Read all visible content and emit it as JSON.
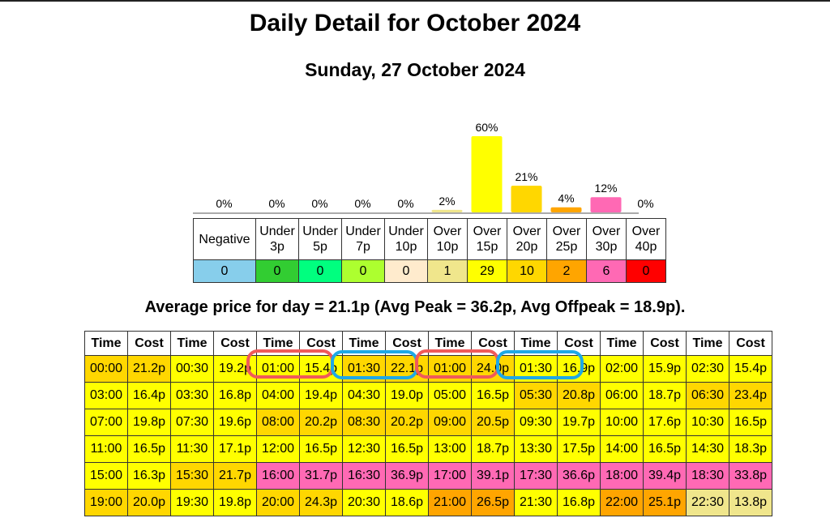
{
  "title": "Daily Detail for October 2024",
  "subtitle": "Sunday, 27 October 2024",
  "average_text": "Average price for day = 21.1p (Avg Peak = 36.2p, Avg Offpeak = 18.9p).",
  "categories": [
    {
      "label": "Negative",
      "count": "0",
      "percent": "0%",
      "color": "#87ceeb"
    },
    {
      "label": "Under 3p",
      "count": "0",
      "percent": "0%",
      "color": "#32cd32"
    },
    {
      "label": "Under 5p",
      "count": "0",
      "percent": "0%",
      "color": "#00ff7f"
    },
    {
      "label": "Under 7p",
      "count": "0",
      "percent": "0%",
      "color": "#adff2f"
    },
    {
      "label": "Under 10p",
      "count": "0",
      "percent": "0%",
      "color": "#ffebcd"
    },
    {
      "label": "Over 10p",
      "count": "1",
      "percent": "2%",
      "color": "#f0e68c"
    },
    {
      "label": "Over 15p",
      "count": "29",
      "percent": "60%",
      "color": "#ffff00"
    },
    {
      "label": "Over 20p",
      "count": "10",
      "percent": "21%",
      "color": "#ffd700"
    },
    {
      "label": "Over 25p",
      "count": "2",
      "percent": "4%",
      "color": "#ffa500"
    },
    {
      "label": "Over 30p",
      "count": "6",
      "percent": "12%",
      "color": "#ff69b4"
    },
    {
      "label": "Over 40p",
      "count": "0",
      "percent": "0%",
      "color": "#ff0000"
    }
  ],
  "chart_data": {
    "type": "bar",
    "categories": [
      "Negative",
      "Under 3p",
      "Under 5p",
      "Under 7p",
      "Under 10p",
      "Over 10p",
      "Over 15p",
      "Over 20p",
      "Over 25p",
      "Over 30p",
      "Over 40p"
    ],
    "values": [
      0,
      0,
      0,
      0,
      0,
      2,
      60,
      21,
      4,
      12,
      0
    ],
    "unit": "%",
    "ylim": [
      0,
      60
    ]
  },
  "table": {
    "header": {
      "time": "Time",
      "cost": "Cost"
    },
    "rows": [
      [
        [
          "00:00",
          "21.2p"
        ],
        [
          "00:30",
          "19.2p"
        ],
        [
          "01:00",
          "15.4p"
        ],
        [
          "01:30",
          "22.1p"
        ],
        [
          "01:00",
          "24.0p"
        ],
        [
          "01:30",
          "16.9p"
        ],
        [
          "02:00",
          "15.9p"
        ],
        [
          "02:30",
          "15.4p"
        ]
      ],
      [
        [
          "03:00",
          "16.4p"
        ],
        [
          "03:30",
          "16.8p"
        ],
        [
          "04:00",
          "19.4p"
        ],
        [
          "04:30",
          "19.0p"
        ],
        [
          "05:00",
          "16.5p"
        ],
        [
          "05:30",
          "20.8p"
        ],
        [
          "06:00",
          "18.7p"
        ],
        [
          "06:30",
          "23.4p"
        ]
      ],
      [
        [
          "07:00",
          "19.8p"
        ],
        [
          "07:30",
          "19.6p"
        ],
        [
          "08:00",
          "20.2p"
        ],
        [
          "08:30",
          "20.2p"
        ],
        [
          "09:00",
          "20.5p"
        ],
        [
          "09:30",
          "19.7p"
        ],
        [
          "10:00",
          "17.6p"
        ],
        [
          "10:30",
          "16.5p"
        ]
      ],
      [
        [
          "11:00",
          "16.5p"
        ],
        [
          "11:30",
          "17.1p"
        ],
        [
          "12:00",
          "16.5p"
        ],
        [
          "12:30",
          "16.5p"
        ],
        [
          "13:00",
          "18.7p"
        ],
        [
          "13:30",
          "17.5p"
        ],
        [
          "14:00",
          "16.5p"
        ],
        [
          "14:30",
          "18.3p"
        ]
      ],
      [
        [
          "15:00",
          "16.3p"
        ],
        [
          "15:30",
          "21.7p"
        ],
        [
          "16:00",
          "31.7p"
        ],
        [
          "16:30",
          "36.9p"
        ],
        [
          "17:00",
          "39.1p"
        ],
        [
          "17:30",
          "36.6p"
        ],
        [
          "18:00",
          "39.4p"
        ],
        [
          "18:30",
          "33.8p"
        ]
      ],
      [
        [
          "19:00",
          "20.0p"
        ],
        [
          "19:30",
          "19.8p"
        ],
        [
          "20:00",
          "24.3p"
        ],
        [
          "20:30",
          "18.6p"
        ],
        [
          "21:00",
          "26.5p"
        ],
        [
          "21:30",
          "16.8p"
        ],
        [
          "22:00",
          "25.1p"
        ],
        [
          "22:30",
          "13.8p"
        ]
      ]
    ]
  },
  "annotations": {
    "red": "#f05a5a",
    "blue": "#1ea8e6"
  }
}
